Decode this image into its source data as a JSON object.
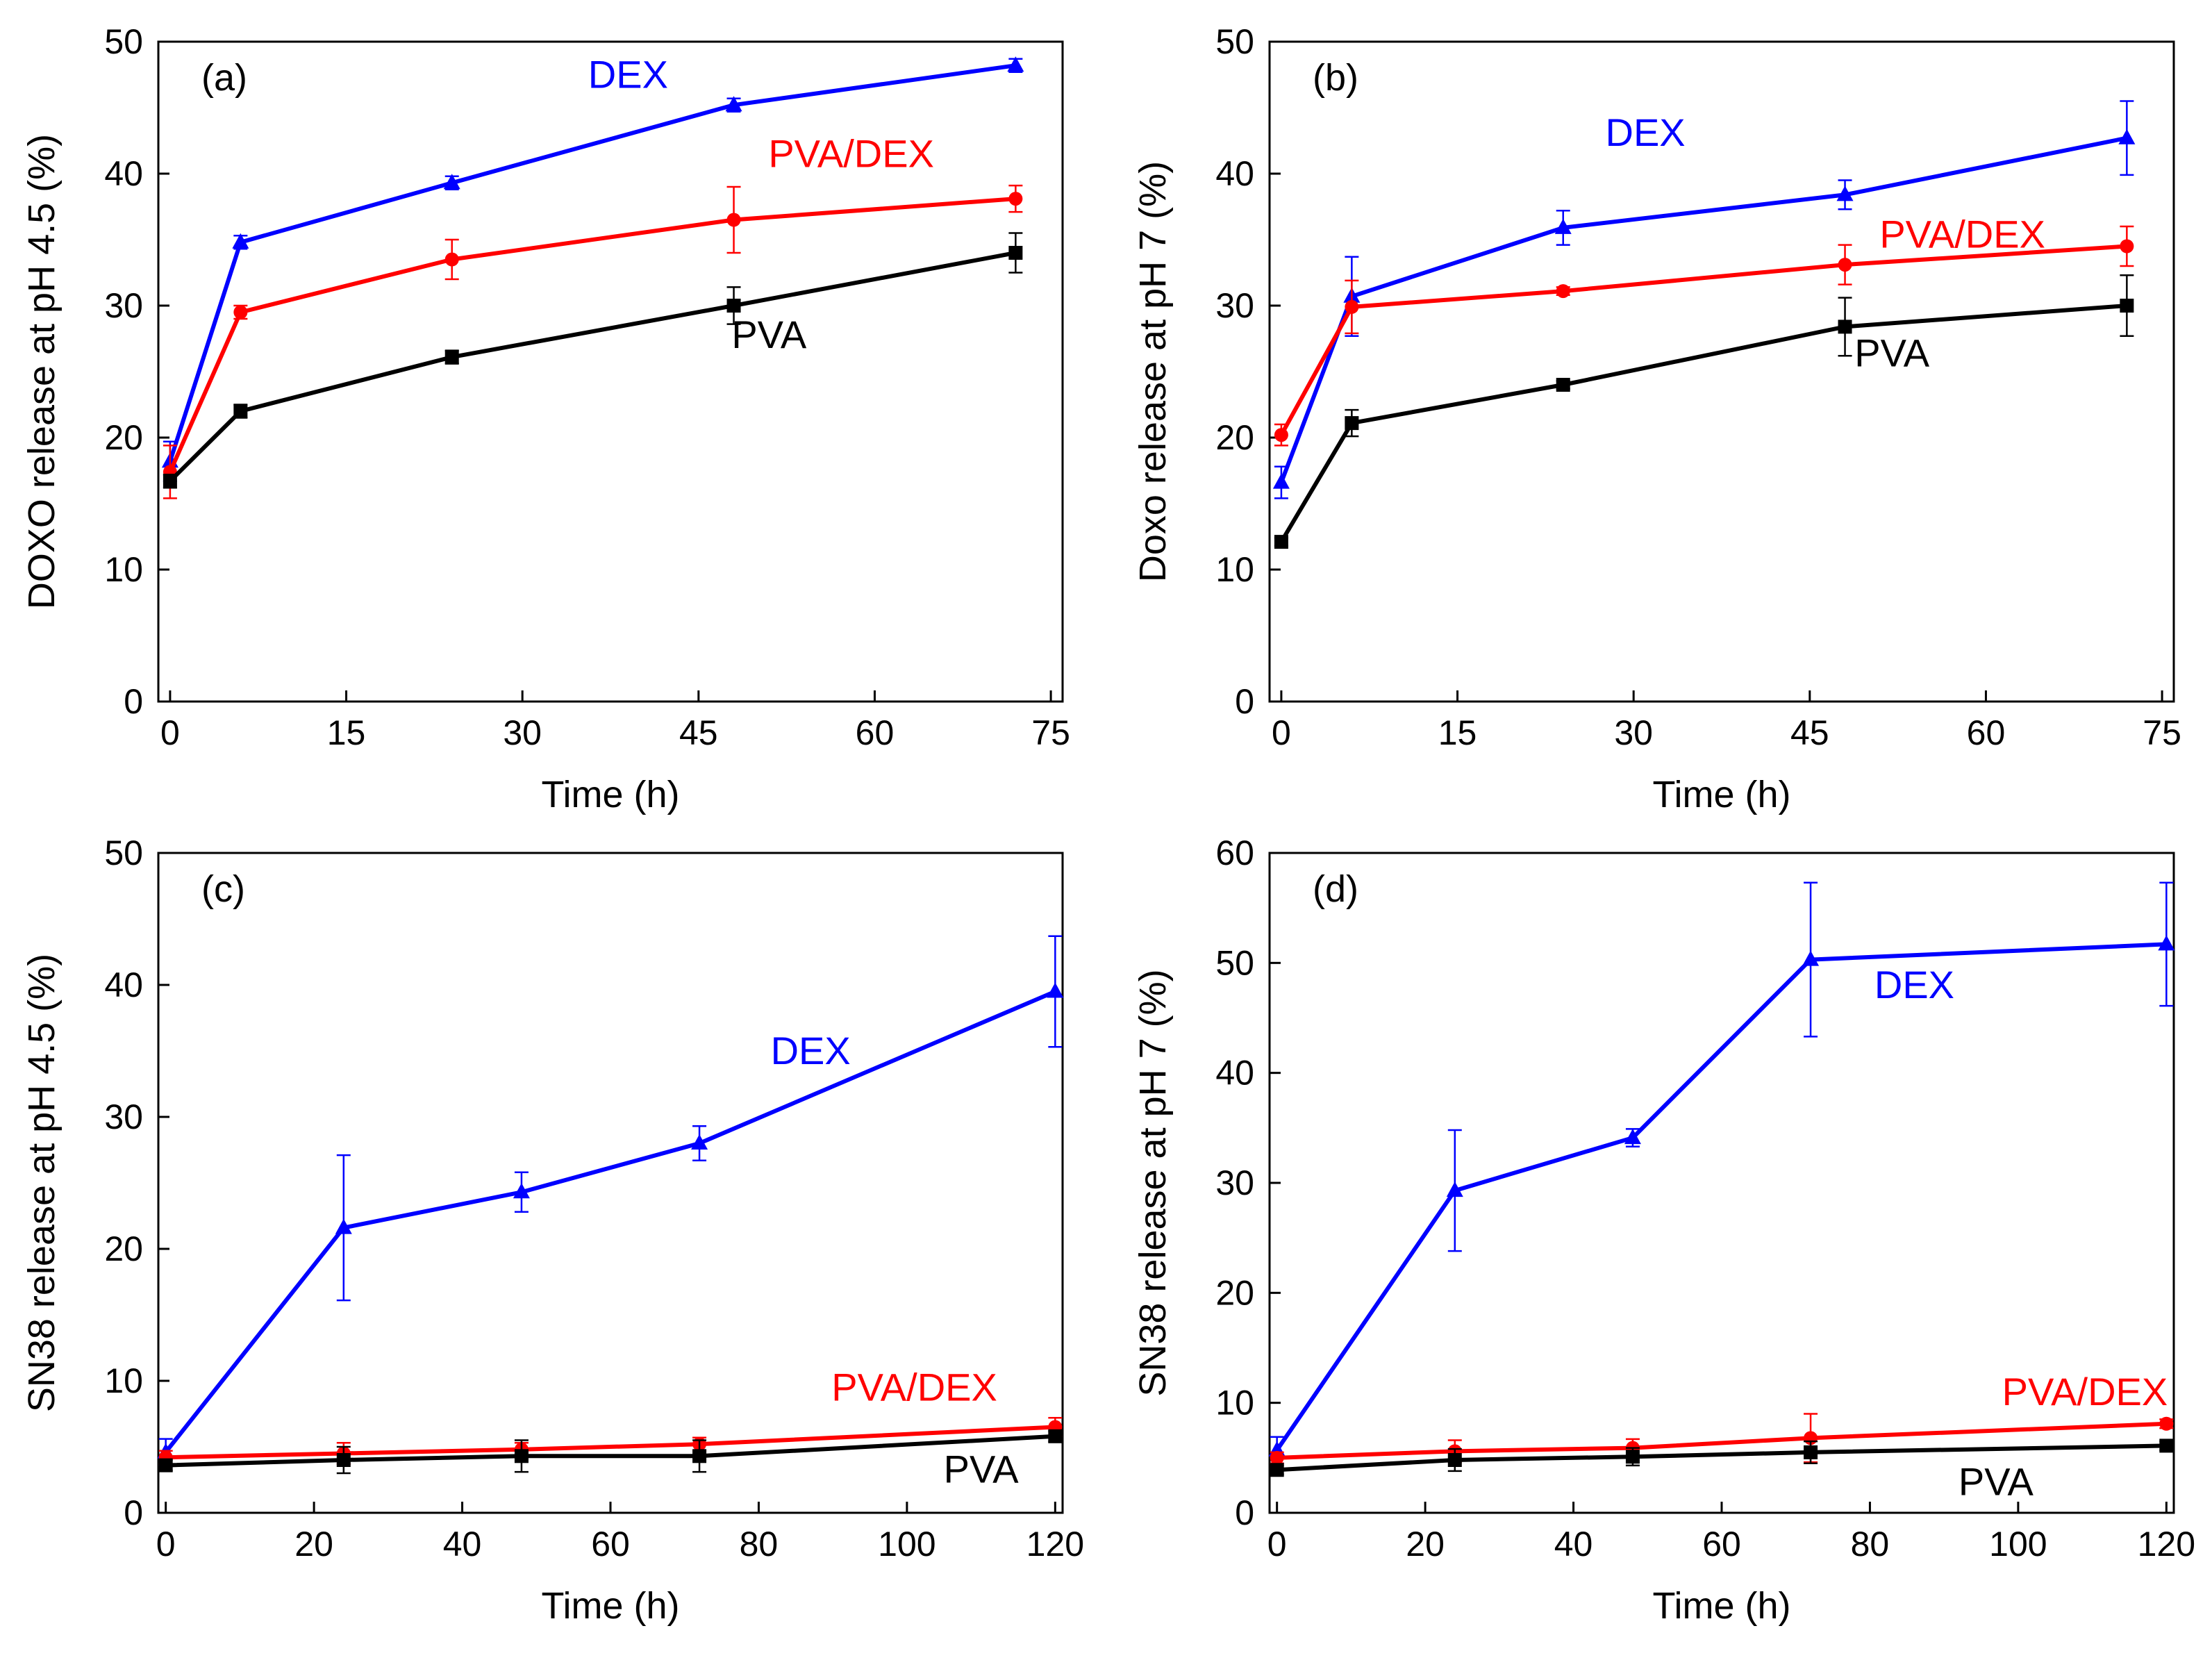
{
  "colors": {
    "DEX": "#0000ff",
    "PVA/DEX": "#ff0000",
    "PVA": "#000000",
    "axis": "#000000"
  },
  "chart_data": [
    {
      "type": "line",
      "panel": "(a)",
      "xlabel": "Time (h)",
      "ylabel": "DOXO release at pH 4.5 (%)",
      "xlim": [
        -1,
        76
      ],
      "ylim": [
        0,
        50
      ],
      "xticks": [
        0,
        15,
        30,
        45,
        60,
        75
      ],
      "yticks": [
        0,
        10,
        20,
        30,
        40,
        50
      ],
      "series": [
        {
          "name": "DEX",
          "label": "DEX",
          "label_at": [
            39,
            46.5
          ],
          "marker": "triangle",
          "x": [
            0,
            6,
            24,
            48,
            72
          ],
          "y": [
            18.2,
            34.8,
            39.3,
            45.2,
            48.2
          ],
          "err": [
            1.5,
            0.5,
            0.5,
            0.5,
            0.5
          ]
        },
        {
          "name": "PVA/DEX",
          "label": "PVA/DEX",
          "label_at": [
            58,
            40.5
          ],
          "marker": "circle",
          "x": [
            0,
            6,
            24,
            48,
            72
          ],
          "y": [
            17.4,
            29.5,
            33.5,
            36.5,
            38.1
          ],
          "err": [
            2.0,
            0.5,
            1.5,
            2.5,
            1.0
          ]
        },
        {
          "name": "PVA",
          "label": "PVA",
          "label_at": [
            51,
            26.8
          ],
          "marker": "square",
          "x": [
            0,
            6,
            24,
            48,
            72
          ],
          "y": [
            16.7,
            22.0,
            26.1,
            30.0,
            34.0
          ],
          "err": [
            0.5,
            0.5,
            0.5,
            1.4,
            1.5
          ]
        }
      ]
    },
    {
      "type": "line",
      "panel": "(b)",
      "xlabel": "Time (h)",
      "ylabel": "Doxo release at pH 7 (%)",
      "xlim": [
        -1,
        76
      ],
      "ylim": [
        0,
        50
      ],
      "xticks": [
        0,
        15,
        30,
        45,
        60,
        75
      ],
      "yticks": [
        0,
        10,
        20,
        30,
        40,
        50
      ],
      "series": [
        {
          "name": "DEX",
          "label": "DEX",
          "label_at": [
            31,
            42.1
          ],
          "marker": "triangle",
          "x": [
            0,
            6,
            24,
            48,
            72
          ],
          "y": [
            16.6,
            30.7,
            35.9,
            38.4,
            42.7
          ],
          "err": [
            1.2,
            3.0,
            1.3,
            1.1,
            2.8
          ]
        },
        {
          "name": "PVA/DEX",
          "label": "PVA/DEX",
          "label_at": [
            58,
            34.4
          ],
          "marker": "circle",
          "x": [
            0,
            6,
            24,
            48,
            72
          ],
          "y": [
            20.2,
            29.9,
            31.1,
            33.1,
            34.5
          ],
          "err": [
            0.8,
            2.0,
            0.3,
            1.5,
            1.5
          ]
        },
        {
          "name": "PVA",
          "label": "PVA",
          "label_at": [
            52,
            25.4
          ],
          "marker": "square",
          "x": [
            0,
            6,
            24,
            48,
            72
          ],
          "y": [
            12.1,
            21.1,
            24.0,
            28.4,
            30.0
          ],
          "err": [
            0.3,
            1.0,
            0.3,
            2.2,
            2.3
          ]
        }
      ]
    },
    {
      "type": "line",
      "panel": "(c)",
      "xlabel": "Time (h)",
      "ylabel": "SN38 release at pH 4.5 (%)",
      "xlim": [
        -1,
        121
      ],
      "ylim": [
        0,
        50
      ],
      "xticks": [
        0,
        20,
        40,
        60,
        80,
        100,
        120
      ],
      "yticks": [
        0,
        10,
        20,
        30,
        40,
        50
      ],
      "series": [
        {
          "name": "DEX",
          "label": "DEX",
          "label_at": [
            87,
            34.0
          ],
          "marker": "triangle",
          "x": [
            0,
            24,
            48,
            72,
            120
          ],
          "y": [
            4.6,
            21.6,
            24.3,
            28.0,
            39.5
          ],
          "err": [
            1.0,
            5.5,
            1.5,
            1.3,
            4.2
          ]
        },
        {
          "name": "PVA/DEX",
          "label": "PVA/DEX",
          "label_at": [
            101,
            8.5
          ],
          "marker": "circle",
          "x": [
            0,
            24,
            48,
            72,
            120
          ],
          "y": [
            4.2,
            4.5,
            4.8,
            5.2,
            6.5
          ],
          "err": [
            0.5,
            0.8,
            0.5,
            0.5,
            0.7
          ]
        },
        {
          "name": "PVA",
          "label": "PVA",
          "label_at": [
            110,
            2.3
          ],
          "marker": "square",
          "x": [
            0,
            24,
            48,
            72,
            120
          ],
          "y": [
            3.6,
            4.0,
            4.3,
            4.3,
            5.8
          ],
          "err": [
            0.4,
            1.0,
            1.2,
            1.2,
            0.4
          ]
        }
      ]
    },
    {
      "type": "line",
      "panel": "(d)",
      "xlabel": "Time (h)",
      "ylabel": "SN38 release at pH 7 (%)",
      "xlim": [
        -1,
        121
      ],
      "ylim": [
        0,
        60
      ],
      "xticks": [
        0,
        20,
        40,
        60,
        80,
        100,
        120
      ],
      "yticks": [
        0,
        10,
        20,
        30,
        40,
        50,
        60
      ],
      "series": [
        {
          "name": "DEX",
          "label": "DEX",
          "label_at": [
            86,
            46.8
          ],
          "marker": "triangle",
          "x": [
            0,
            24,
            48,
            72,
            120
          ],
          "y": [
            5.7,
            29.3,
            34.1,
            50.3,
            51.7
          ],
          "err": [
            1.2,
            5.5,
            0.8,
            7.0,
            5.6
          ]
        },
        {
          "name": "PVA/DEX",
          "label": "PVA/DEX",
          "label_at": [
            109,
            9.8
          ],
          "marker": "circle",
          "x": [
            0,
            24,
            48,
            72,
            120
          ],
          "y": [
            5.0,
            5.6,
            5.9,
            6.8,
            8.1
          ],
          "err": [
            0.5,
            1.0,
            0.8,
            2.2,
            0.4
          ]
        },
        {
          "name": "PVA",
          "label": "PVA",
          "label_at": [
            97,
            1.6
          ],
          "marker": "square",
          "x": [
            0,
            24,
            48,
            72,
            120
          ],
          "y": [
            3.9,
            4.8,
            5.1,
            5.5,
            6.1
          ],
          "err": [
            0.4,
            1.0,
            0.8,
            1.0,
            0.4
          ]
        }
      ]
    }
  ]
}
